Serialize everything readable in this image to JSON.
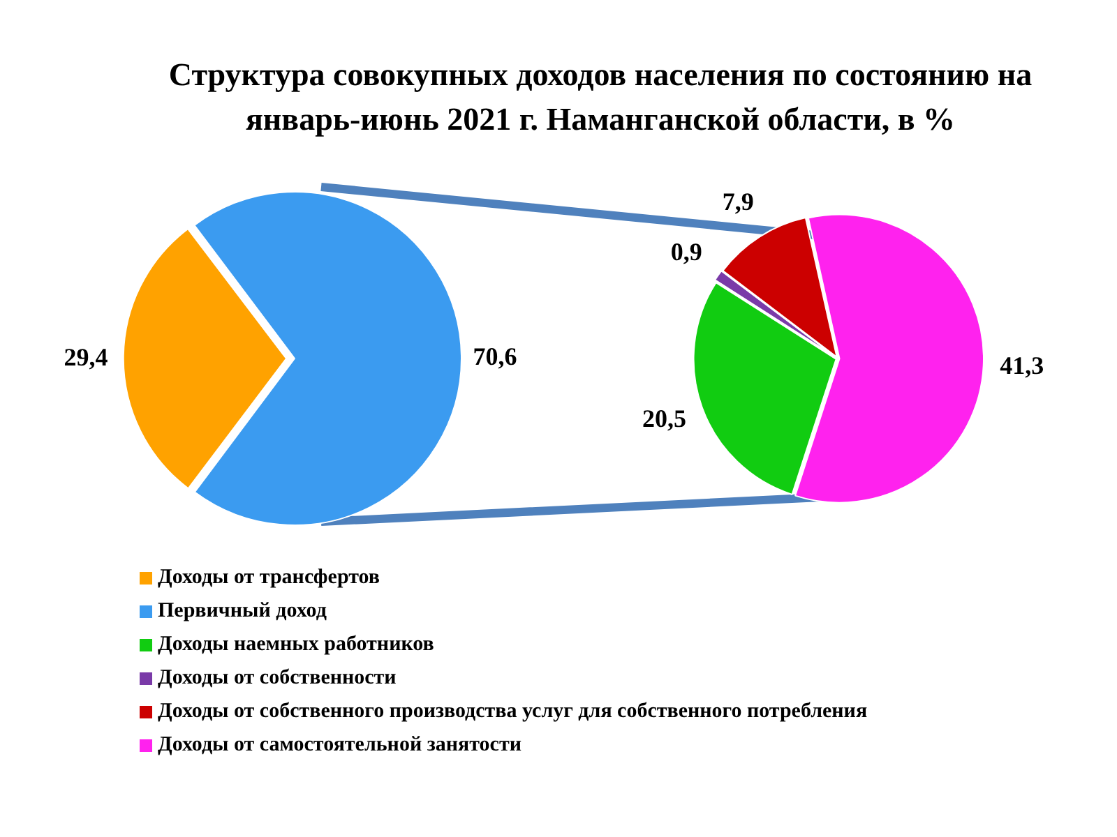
{
  "chart_data": [
    {
      "type": "pie",
      "title": "Структура совокупных доходов населения по состоянию на январь-июнь 2021 г. Наманганской области, в %",
      "categories": [
        "Доходы от трансфертов",
        "Первичный доход"
      ],
      "values": [
        29.4,
        70.6
      ],
      "colors": [
        "#ffa200",
        "#3b9bf0"
      ],
      "value_labels": [
        "29,4",
        "70,6"
      ],
      "legend": "bottom"
    },
    {
      "type": "pie",
      "categories": [
        "Доходы наемных работников",
        "Доходы от собственности",
        "Доходы от собственного производства услуг для собственного потребления",
        "Доходы от самостоятельной занятости"
      ],
      "values": [
        20.5,
        0.9,
        7.9,
        41.3
      ],
      "colors": [
        "#11cc11",
        "#7a3aa8",
        "#cc0000",
        "#ff22ee"
      ],
      "value_labels": [
        "20,5",
        "0,9",
        "7,9",
        "41,3"
      ],
      "legend": "bottom"
    }
  ]
}
